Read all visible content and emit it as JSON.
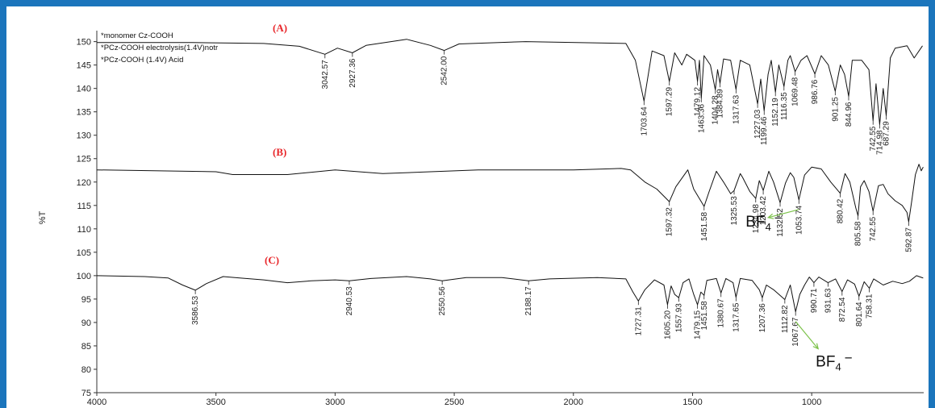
{
  "chart_data": {
    "type": "line",
    "ylabel": "%T",
    "xlim": [
      4000,
      530
    ],
    "ylim": [
      75,
      152
    ],
    "xticks": [
      4000,
      3500,
      3000,
      2500,
      2000,
      1500,
      1000
    ],
    "yticks": [
      75,
      80,
      85,
      90,
      95,
      100,
      105,
      110,
      115,
      120,
      125,
      130,
      135,
      140,
      145,
      150
    ],
    "legend": [
      "*monomer Cz-COOH",
      "*PCz-COOH electrolysis(1.4V)notr",
      "*PCz-COOH (1.4V) Acid"
    ],
    "series": [
      {
        "name": "(A)",
        "color": "#111111",
        "points": [
          [
            4000,
            149.8
          ],
          [
            3600,
            149.8
          ],
          [
            3300,
            149.6
          ],
          [
            3150,
            149
          ],
          [
            3042.57,
            147.3
          ],
          [
            2990,
            148.6
          ],
          [
            2927.36,
            147.6
          ],
          [
            2870,
            149.2
          ],
          [
            2700,
            150.5
          ],
          [
            2600,
            149.2
          ],
          [
            2542,
            148.1
          ],
          [
            2480,
            149.5
          ],
          [
            2200,
            150
          ],
          [
            1780,
            149.6
          ],
          [
            1740,
            146
          ],
          [
            1703.64,
            137.3
          ],
          [
            1670,
            148
          ],
          [
            1620,
            147
          ],
          [
            1597.29,
            141.5
          ],
          [
            1575,
            147.6
          ],
          [
            1545,
            145
          ],
          [
            1525,
            147.3
          ],
          [
            1490,
            146
          ],
          [
            1479.12,
            141.5
          ],
          [
            1471,
            146
          ],
          [
            1463.36,
            137.9
          ],
          [
            1452,
            147
          ],
          [
            1425,
            145
          ],
          [
            1404.28,
            139.7
          ],
          [
            1395,
            144
          ],
          [
            1384.89,
            141.1
          ],
          [
            1370,
            146.3
          ],
          [
            1340,
            146
          ],
          [
            1317.63,
            139.8
          ],
          [
            1300,
            146
          ],
          [
            1260,
            145
          ],
          [
            1227.03,
            136.7
          ],
          [
            1214,
            142
          ],
          [
            1199.46,
            135.2
          ],
          [
            1183,
            143
          ],
          [
            1170,
            146
          ],
          [
            1152.19,
            139.2
          ],
          [
            1138,
            145
          ],
          [
            1116.35,
            140.4
          ],
          [
            1100,
            146
          ],
          [
            1090,
            147
          ],
          [
            1069.48,
            143.6
          ],
          [
            1045,
            146
          ],
          [
            1020,
            147
          ],
          [
            986.76,
            143.1
          ],
          [
            960,
            147
          ],
          [
            930,
            145
          ],
          [
            901.25,
            139.4
          ],
          [
            880,
            145
          ],
          [
            862,
            143
          ],
          [
            844.96,
            138.3
          ],
          [
            830,
            146
          ],
          [
            790,
            146
          ],
          [
            760,
            144
          ],
          [
            742.55,
            133.1
          ],
          [
            730,
            141
          ],
          [
            714.98,
            132.3
          ],
          [
            700,
            140
          ],
          [
            687.29,
            134.2
          ],
          [
            670,
            146.5
          ],
          [
            650,
            148.6
          ],
          [
            600,
            149.1
          ],
          [
            570,
            146.5
          ],
          [
            535,
            149.1
          ]
        ]
      },
      {
        "name": "(B)",
        "color": "#111111",
        "points": [
          [
            4000,
            122.6
          ],
          [
            3500,
            122.2
          ],
          [
            3430,
            121.6
          ],
          [
            3200,
            121.6
          ],
          [
            3000,
            122.6
          ],
          [
            2800,
            121.8
          ],
          [
            2600,
            122.2
          ],
          [
            2400,
            122.6
          ],
          [
            2000,
            122.6
          ],
          [
            1800,
            122.9
          ],
          [
            1760,
            122.6
          ],
          [
            1700,
            120
          ],
          [
            1650,
            118.5
          ],
          [
            1597.32,
            115.8
          ],
          [
            1570,
            119
          ],
          [
            1520,
            122.6
          ],
          [
            1495,
            118.5
          ],
          [
            1451.58,
            114.8
          ],
          [
            1430,
            118
          ],
          [
            1400,
            122.3
          ],
          [
            1370,
            120
          ],
          [
            1340,
            117.5
          ],
          [
            1325.53,
            118.2
          ],
          [
            1300,
            121.8
          ],
          [
            1290,
            121
          ],
          [
            1260,
            118
          ],
          [
            1234.98,
            116.5
          ],
          [
            1220,
            120.3
          ],
          [
            1203.42,
            118.2
          ],
          [
            1180,
            122.3
          ],
          [
            1160,
            120
          ],
          [
            1132.52,
            115.6
          ],
          [
            1110,
            119.8
          ],
          [
            1090,
            122
          ],
          [
            1075,
            121
          ],
          [
            1053.74,
            116.2
          ],
          [
            1030,
            121.5
          ],
          [
            1000,
            123.2
          ],
          [
            960,
            122.8
          ],
          [
            920,
            120
          ],
          [
            880.42,
            117.6
          ],
          [
            860,
            121.8
          ],
          [
            840,
            120
          ],
          [
            815,
            114.5
          ],
          [
            805.58,
            112.8
          ],
          [
            795,
            119
          ],
          [
            780,
            120.3
          ],
          [
            760,
            118
          ],
          [
            742.55,
            113.8
          ],
          [
            720,
            119.2
          ],
          [
            700,
            119.5
          ],
          [
            680,
            117.5
          ],
          [
            650,
            116
          ],
          [
            620,
            115
          ],
          [
            600,
            113.5
          ],
          [
            592.87,
            111.5
          ],
          [
            580,
            116
          ],
          [
            565,
            121.6
          ],
          [
            550,
            123.8
          ],
          [
            540,
            122.4
          ],
          [
            532,
            123.2
          ]
        ]
      },
      {
        "name": "(C)",
        "color": "#111111",
        "points": [
          [
            4000,
            100
          ],
          [
            3800,
            99.8
          ],
          [
            3700,
            99.5
          ],
          [
            3640,
            98
          ],
          [
            3586.53,
            96.9
          ],
          [
            3540,
            98.3
          ],
          [
            3470,
            99.8
          ],
          [
            3400,
            99.5
          ],
          [
            3300,
            99.1
          ],
          [
            3200,
            98.5
          ],
          [
            3100,
            98.9
          ],
          [
            3000,
            99.1
          ],
          [
            2940.53,
            98.9
          ],
          [
            2850,
            99.4
          ],
          [
            2700,
            99.8
          ],
          [
            2600,
            99.3
          ],
          [
            2550.56,
            98.9
          ],
          [
            2450,
            99.6
          ],
          [
            2300,
            99.6
          ],
          [
            2188.17,
            98.9
          ],
          [
            2100,
            99.3
          ],
          [
            1900,
            99.6
          ],
          [
            1780,
            99.3
          ],
          [
            1750,
            96.5
          ],
          [
            1727.31,
            94.6
          ],
          [
            1700,
            97
          ],
          [
            1660,
            99.1
          ],
          [
            1620,
            98
          ],
          [
            1605.2,
            93.8
          ],
          [
            1590,
            97.8
          ],
          [
            1575,
            96
          ],
          [
            1557.93,
            95.3
          ],
          [
            1540,
            98.5
          ],
          [
            1515,
            99.3
          ],
          [
            1495,
            96
          ],
          [
            1479.15,
            93.8
          ],
          [
            1465,
            96.5
          ],
          [
            1451.58,
            95.8
          ],
          [
            1440,
            99
          ],
          [
            1400,
            99.4
          ],
          [
            1380.67,
            96.3
          ],
          [
            1360,
            99.4
          ],
          [
            1330,
            98.5
          ],
          [
            1317.65,
            95.4
          ],
          [
            1300,
            99.4
          ],
          [
            1250,
            99
          ],
          [
            1220,
            97
          ],
          [
            1207.36,
            95.3
          ],
          [
            1190,
            98
          ],
          [
            1160,
            97
          ],
          [
            1112.82,
            94.9
          ],
          [
            1090,
            98
          ],
          [
            1067.67,
            92.3
          ],
          [
            1050,
            96
          ],
          [
            1030,
            98
          ],
          [
            1010,
            99.7
          ],
          [
            990.71,
            98.5
          ],
          [
            970,
            99.7
          ],
          [
            931.63,
            98.5
          ],
          [
            900,
            99.3
          ],
          [
            872.54,
            96.6
          ],
          [
            850,
            99.1
          ],
          [
            820,
            98.2
          ],
          [
            801.64,
            95.6
          ],
          [
            780,
            98.7
          ],
          [
            758.31,
            97.3
          ],
          [
            740,
            99.3
          ],
          [
            700,
            98
          ],
          [
            660,
            98.8
          ],
          [
            620,
            98.3
          ],
          [
            590,
            98.8
          ],
          [
            560,
            100
          ],
          [
            532,
            99.5
          ]
        ]
      }
    ],
    "peak_labels": [
      {
        "series": "(A)",
        "x": 3042.57,
        "text": "3042.57"
      },
      {
        "series": "(A)",
        "x": 2927.36,
        "text": "2927.36"
      },
      {
        "series": "(A)",
        "x": 2542.0,
        "text": "2542.00"
      },
      {
        "series": "(A)",
        "x": 1703.64,
        "text": "1703.64"
      },
      {
        "series": "(A)",
        "x": 1597.29,
        "text": "1597.29"
      },
      {
        "series": "(A)",
        "x": 1479.12,
        "text": "1479.12"
      },
      {
        "series": "(A)",
        "x": 1463.36,
        "text": "1463.36"
      },
      {
        "series": "(A)",
        "x": 1404.28,
        "text": "1404.28"
      },
      {
        "series": "(A)",
        "x": 1384.89,
        "text": "1384.89"
      },
      {
        "series": "(A)",
        "x": 1317.63,
        "text": "1317.63"
      },
      {
        "series": "(A)",
        "x": 1227.03,
        "text": "1227.03"
      },
      {
        "series": "(A)",
        "x": 1199.46,
        "text": "1199.46"
      },
      {
        "series": "(A)",
        "x": 1152.19,
        "text": "1152.19"
      },
      {
        "series": "(A)",
        "x": 1116.35,
        "text": "1116.35"
      },
      {
        "series": "(A)",
        "x": 1069.48,
        "text": "1069.48"
      },
      {
        "series": "(A)",
        "x": 986.76,
        "text": "986.76"
      },
      {
        "series": "(A)",
        "x": 901.25,
        "text": "901.25"
      },
      {
        "series": "(A)",
        "x": 844.96,
        "text": "844.96"
      },
      {
        "series": "(A)",
        "x": 742.55,
        "text": "742.55"
      },
      {
        "series": "(A)",
        "x": 714.98,
        "text": "714.98"
      },
      {
        "series": "(A)",
        "x": 687.29,
        "text": "687.29"
      },
      {
        "series": "(B)",
        "x": 1597.32,
        "text": "1597.32"
      },
      {
        "series": "(B)",
        "x": 1451.58,
        "text": "1451.58"
      },
      {
        "series": "(B)",
        "x": 1325.53,
        "text": "1325.53"
      },
      {
        "series": "(B)",
        "x": 1234.98,
        "text": "1234.98"
      },
      {
        "series": "(B)",
        "x": 1203.42,
        "text": "1203.42"
      },
      {
        "series": "(B)",
        "x": 1132.52,
        "text": "1132.52"
      },
      {
        "series": "(B)",
        "x": 1053.74,
        "text": "1053.74"
      },
      {
        "series": "(B)",
        "x": 880.42,
        "text": "880.42"
      },
      {
        "series": "(B)",
        "x": 805.58,
        "text": "805.58"
      },
      {
        "series": "(B)",
        "x": 742.55,
        "text": "742.55"
      },
      {
        "series": "(B)",
        "x": 592.87,
        "text": "592.87"
      },
      {
        "series": "(C)",
        "x": 3586.53,
        "text": "3586.53"
      },
      {
        "series": "(C)",
        "x": 2940.53,
        "text": "2940.53"
      },
      {
        "series": "(C)",
        "x": 2550.56,
        "text": "2550.56"
      },
      {
        "series": "(C)",
        "x": 2188.17,
        "text": "2188.17"
      },
      {
        "series": "(C)",
        "x": 1727.31,
        "text": "1727.31"
      },
      {
        "series": "(C)",
        "x": 1605.2,
        "text": "1605.20"
      },
      {
        "series": "(C)",
        "x": 1557.93,
        "text": "1557.93"
      },
      {
        "series": "(C)",
        "x": 1479.15,
        "text": "1479.15"
      },
      {
        "series": "(C)",
        "x": 1451.58,
        "text": "1451.58"
      },
      {
        "series": "(C)",
        "x": 1380.67,
        "text": "1380.67"
      },
      {
        "series": "(C)",
        "x": 1317.65,
        "text": "1317.65"
      },
      {
        "series": "(C)",
        "x": 1207.36,
        "text": "1207.36"
      },
      {
        "series": "(C)",
        "x": 1112.82,
        "text": "1112.82"
      },
      {
        "series": "(C)",
        "x": 1067.67,
        "text": "1067.67"
      },
      {
        "series": "(C)",
        "x": 990.71,
        "text": "990.71"
      },
      {
        "series": "(C)",
        "x": 931.63,
        "text": "931.63"
      },
      {
        "series": "(C)",
        "x": 872.54,
        "text": "872.54"
      },
      {
        "series": "(C)",
        "x": 801.64,
        "text": "801.64"
      },
      {
        "series": "(C)",
        "x": 758.31,
        "text": "758.31"
      }
    ],
    "annotations": [
      {
        "series": "(B)",
        "x": 1053.74,
        "text_main": "BF",
        "text_sub": "4",
        "text_sup": "−",
        "arrow_color": "#7cc24a"
      },
      {
        "series": "(C)",
        "x": 1067.67,
        "text_main": "BF",
        "text_sub": "4",
        "text_sup": "−",
        "arrow_color": "#7cc24a"
      }
    ],
    "frame_color": "#1b75bc",
    "panel_label_color": "#e8262a"
  }
}
